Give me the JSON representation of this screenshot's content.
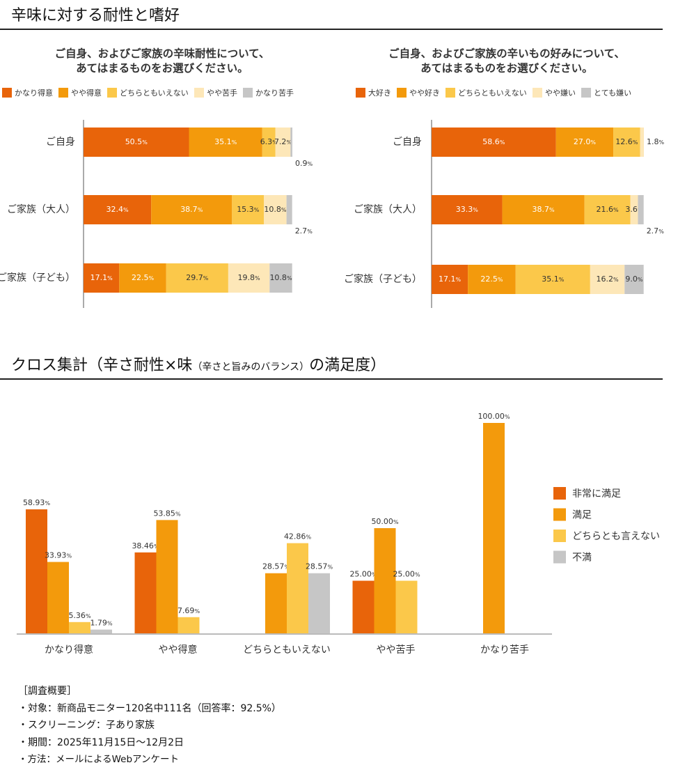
{
  "sections": {
    "top_title": "辛味に対する耐性と嗜好",
    "bottom_title_main": "クロス集計（辛さ耐性×味",
    "bottom_title_small": "（辛さと旨みのバランス）",
    "bottom_title_end": "の満足度）"
  },
  "colors": {
    "c1": "#E8640A",
    "c2": "#F39A0C",
    "c3": "#FBC84A",
    "c4": "#FDE7B8",
    "c5": "#C6C6C6",
    "axis": "#AAAAAA"
  },
  "chart_data": [
    {
      "type": "bar",
      "orientation": "horizontal-stacked",
      "title_lines": [
        "ご自身、およびご家族の辛味耐性について、",
        "あてはまるものをお選びください。"
      ],
      "legend": [
        "かなり得意",
        "やや得意",
        "どちらともいえない",
        "やや苦手",
        "かなり苦手"
      ],
      "categories": [
        "ご自身",
        "ご家族（大人）",
        "ご家族（子ども）"
      ],
      "series": [
        {
          "name": "かなり得意",
          "values": [
            50.5,
            32.4,
            17.1
          ]
        },
        {
          "name": "やや得意",
          "values": [
            35.1,
            38.7,
            22.5
          ]
        },
        {
          "name": "どちらともいえない",
          "values": [
            6.3,
            15.3,
            29.7
          ]
        },
        {
          "name": "やや苦手",
          "values": [
            7.2,
            10.8,
            19.8
          ]
        },
        {
          "name": "かなり苦手",
          "values": [
            0.9,
            2.7,
            10.8
          ]
        }
      ],
      "xlim": [
        0,
        100
      ]
    },
    {
      "type": "bar",
      "orientation": "horizontal-stacked",
      "title_lines": [
        "ご自身、およびご家族の辛いもの好みについて、",
        "あてはまるものをお選びください。"
      ],
      "legend": [
        "大好き",
        "やや好き",
        "どちらともいえない",
        "やや嫌い",
        "とても嫌い"
      ],
      "categories": [
        "ご自身",
        "ご家族（大人）",
        "ご家族（子ども）"
      ],
      "series": [
        {
          "name": "大好き",
          "values": [
            58.6,
            33.3,
            17.1
          ]
        },
        {
          "name": "やや好き",
          "values": [
            27.0,
            38.7,
            22.5
          ]
        },
        {
          "name": "どちらともいえない",
          "values": [
            12.6,
            21.6,
            35.1
          ]
        },
        {
          "name": "やや嫌い",
          "values": [
            1.8,
            3.6,
            16.2
          ]
        },
        {
          "name": "とても嫌い",
          "values": [
            0,
            2.7,
            9.0
          ]
        }
      ],
      "xlim": [
        0,
        100
      ]
    },
    {
      "type": "bar",
      "orientation": "vertical-grouped",
      "categories": [
        "かなり得意",
        "やや得意",
        "どちらともいえない",
        "やや苦手",
        "かなり苦手"
      ],
      "legend": [
        "非常に満足",
        "満足",
        "どちらとも言えない",
        "不満"
      ],
      "series": [
        {
          "name": "非常に満足",
          "values": [
            58.93,
            38.46,
            null,
            25.0,
            null
          ]
        },
        {
          "name": "満足",
          "values": [
            33.93,
            53.85,
            28.57,
            50.0,
            100.0
          ]
        },
        {
          "name": "どちらとも言えない",
          "values": [
            5.36,
            7.69,
            42.86,
            25.0,
            null
          ]
        },
        {
          "name": "不満",
          "values": [
            1.79,
            null,
            28.57,
            null,
            null
          ]
        }
      ],
      "ylim": [
        0,
        100
      ]
    }
  ],
  "footnote": {
    "heading": "［調査概要］",
    "lines": [
      "・対象：新商品モニター120名中111名（回答率：92.5%）",
      "・スクリーニング：子あり家族",
      "・期間：2025年11月15日～12月2日",
      "・方法：メールによるWebアンケート"
    ]
  }
}
